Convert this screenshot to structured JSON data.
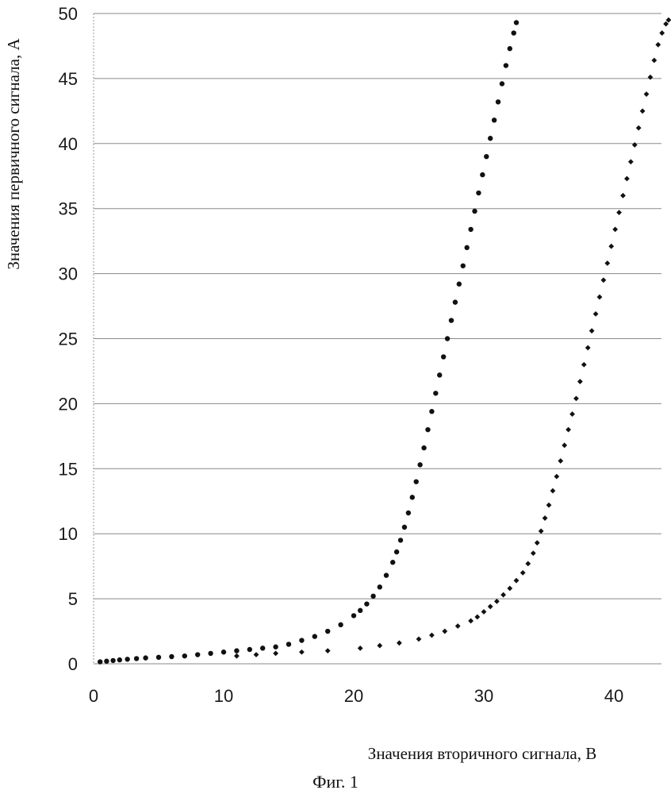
{
  "chart_data": {
    "type": "scatter",
    "title": "",
    "xlabel": "Значения вторичного сигнала, В",
    "ylabel": "Значения первичного сигнала, А",
    "caption": "Фиг. 1",
    "xlim": [
      0,
      45
    ],
    "ylim": [
      0,
      50
    ],
    "xticks": [
      0,
      10,
      20,
      30,
      40
    ],
    "xtick_labels": [
      "0",
      "10",
      "20",
      "30",
      "40"
    ],
    "yticks": [
      0,
      5,
      10,
      15,
      20,
      25,
      30,
      35,
      40,
      45,
      50
    ],
    "ytick_labels": [
      "0",
      "5",
      "10",
      "15",
      "20",
      "25",
      "30",
      "35",
      "40",
      "45",
      "50"
    ],
    "grid": "horizontal",
    "legend": "none",
    "series": [
      {
        "marker": "circle",
        "color": "#111111",
        "x": [
          0.5,
          1.0,
          1.5,
          2.0,
          2.6,
          3.3,
          4.0,
          5.0,
          6.0,
          7.0,
          8.0,
          9.0,
          10.0,
          11.0,
          12.0,
          13.0,
          14.0,
          15.0,
          16.0,
          17.0,
          18.0,
          19.0,
          20.0,
          20.5,
          21.0,
          21.5,
          22.0,
          22.5,
          23.0,
          23.3,
          23.6,
          23.9,
          24.2,
          24.5,
          24.8,
          25.1,
          25.4,
          25.7,
          26.0,
          26.3,
          26.6,
          26.9,
          27.2,
          27.5,
          27.8,
          28.1,
          28.4,
          28.7,
          29.0,
          29.3,
          29.6,
          29.9,
          30.2,
          30.5,
          30.8,
          31.1,
          31.4,
          31.7,
          32.0,
          32.3,
          32.5
        ],
        "y": [
          0.15,
          0.2,
          0.25,
          0.3,
          0.35,
          0.4,
          0.45,
          0.5,
          0.55,
          0.6,
          0.7,
          0.8,
          0.9,
          1.0,
          1.1,
          1.2,
          1.3,
          1.5,
          1.8,
          2.1,
          2.5,
          3.0,
          3.7,
          4.1,
          4.6,
          5.2,
          5.9,
          6.8,
          7.8,
          8.6,
          9.5,
          10.5,
          11.6,
          12.8,
          14.0,
          15.3,
          16.6,
          18.0,
          19.4,
          20.8,
          22.2,
          23.6,
          25.0,
          26.4,
          27.8,
          29.2,
          30.6,
          32.0,
          33.4,
          34.8,
          36.2,
          37.6,
          39.0,
          40.4,
          41.8,
          43.2,
          44.6,
          46.0,
          47.3,
          48.5,
          49.3
        ]
      },
      {
        "marker": "diamond",
        "color": "#111111",
        "x": [
          11.0,
          12.5,
          14.0,
          16.0,
          18.0,
          20.5,
          22.0,
          23.5,
          25.0,
          26.0,
          27.0,
          28.0,
          29.0,
          29.5,
          30.0,
          30.5,
          31.0,
          31.5,
          32.0,
          32.5,
          33.0,
          33.4,
          33.8,
          34.1,
          34.4,
          34.7,
          35.0,
          35.3,
          35.6,
          35.9,
          36.2,
          36.5,
          36.8,
          37.1,
          37.4,
          37.7,
          38.0,
          38.3,
          38.6,
          38.9,
          39.2,
          39.5,
          39.8,
          40.1,
          40.4,
          40.7,
          41.0,
          41.3,
          41.6,
          41.9,
          42.2,
          42.5,
          42.8,
          43.1,
          43.4,
          43.7,
          44.0,
          44.2
        ],
        "y": [
          0.6,
          0.7,
          0.8,
          0.9,
          1.0,
          1.2,
          1.4,
          1.6,
          1.9,
          2.2,
          2.5,
          2.9,
          3.3,
          3.6,
          4.0,
          4.4,
          4.8,
          5.3,
          5.8,
          6.4,
          7.0,
          7.7,
          8.5,
          9.3,
          10.2,
          11.2,
          12.2,
          13.3,
          14.4,
          15.6,
          16.8,
          18.0,
          19.2,
          20.4,
          21.7,
          23.0,
          24.3,
          25.6,
          26.9,
          28.2,
          29.5,
          30.8,
          32.1,
          33.4,
          34.7,
          36.0,
          37.3,
          38.6,
          39.9,
          41.2,
          42.5,
          43.8,
          45.1,
          46.4,
          47.6,
          48.5,
          49.2,
          49.5
        ]
      }
    ]
  }
}
